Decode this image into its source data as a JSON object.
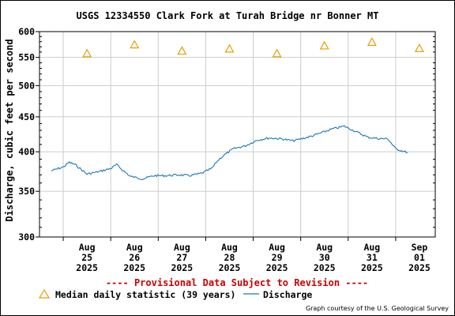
{
  "chart_data": {
    "type": "line",
    "title": "USGS 12334550 Clark Fork at Turah Bridge nr Bonner MT",
    "ylabel": "Discharge, cubic feet per second",
    "xlabel": "",
    "y_scale": "log",
    "ylim": [
      300,
      600
    ],
    "yticks": [
      300,
      350,
      400,
      450,
      500,
      550,
      600
    ],
    "x_ticks": [
      {
        "month": "Aug",
        "day": "25",
        "year": "2025"
      },
      {
        "month": "Aug",
        "day": "26",
        "year": "2025"
      },
      {
        "month": "Aug",
        "day": "27",
        "year": "2025"
      },
      {
        "month": "Aug",
        "day": "28",
        "year": "2025"
      },
      {
        "month": "Aug",
        "day": "29",
        "year": "2025"
      },
      {
        "month": "Aug",
        "day": "30",
        "year": "2025"
      },
      {
        "month": "Aug",
        "day": "31",
        "year": "2025"
      },
      {
        "month": "Sep",
        "day": "01",
        "year": "2025"
      }
    ],
    "grid": true,
    "series": [
      {
        "name": "Discharge",
        "color": "#1f77b4",
        "x": [
          "2025-08-24 18:00",
          "2025-08-25 00:00",
          "2025-08-25 03:00",
          "2025-08-25 06:00",
          "2025-08-25 12:00",
          "2025-08-25 18:00",
          "2025-08-26 00:00",
          "2025-08-26 03:00",
          "2025-08-26 06:00",
          "2025-08-26 10:00",
          "2025-08-26 16:00",
          "2025-08-26 22:00",
          "2025-08-27 04:00",
          "2025-08-27 10:00",
          "2025-08-27 16:00",
          "2025-08-27 22:00",
          "2025-08-28 03:00",
          "2025-08-28 06:00",
          "2025-08-28 09:00",
          "2025-08-28 14:00",
          "2025-08-28 20:00",
          "2025-08-29 02:00",
          "2025-08-29 08:00",
          "2025-08-29 14:00",
          "2025-08-29 20:00",
          "2025-08-30 02:00",
          "2025-08-30 06:00",
          "2025-08-30 10:00",
          "2025-08-30 16:00",
          "2025-08-30 22:00",
          "2025-08-31 04:00",
          "2025-08-31 10:00",
          "2025-08-31 16:00",
          "2025-08-31 20:00",
          "2025-09-01 00:00",
          "2025-09-01 06:00"
        ],
        "values": [
          375,
          380,
          386,
          383,
          371,
          374,
          378,
          383,
          376,
          368,
          365,
          369,
          369,
          370,
          369,
          372,
          378,
          388,
          395,
          404,
          408,
          416,
          419,
          418,
          415,
          419,
          422,
          426,
          432,
          436,
          428,
          420,
          418,
          418,
          404,
          399
        ]
      },
      {
        "name": "Median daily statistic (39 years)",
        "type": "scatter",
        "marker": "triangle",
        "color": "#e0a000",
        "x": [
          "2025-08-25",
          "2025-08-26",
          "2025-08-27",
          "2025-08-28",
          "2025-08-29",
          "2025-08-30",
          "2025-08-31",
          "2025-09-01"
        ],
        "values": [
          557,
          574,
          562,
          566,
          557,
          572,
          579,
          567
        ]
      }
    ],
    "legend_position": "bottom"
  },
  "provisional_note": "---- Provisional Data Subject to Revision ----",
  "legend": {
    "median_label": "Median daily statistic (39 years)",
    "discharge_label": "Discharge"
  },
  "credit": "Graph courtesy of the U.S. Geological Survey"
}
